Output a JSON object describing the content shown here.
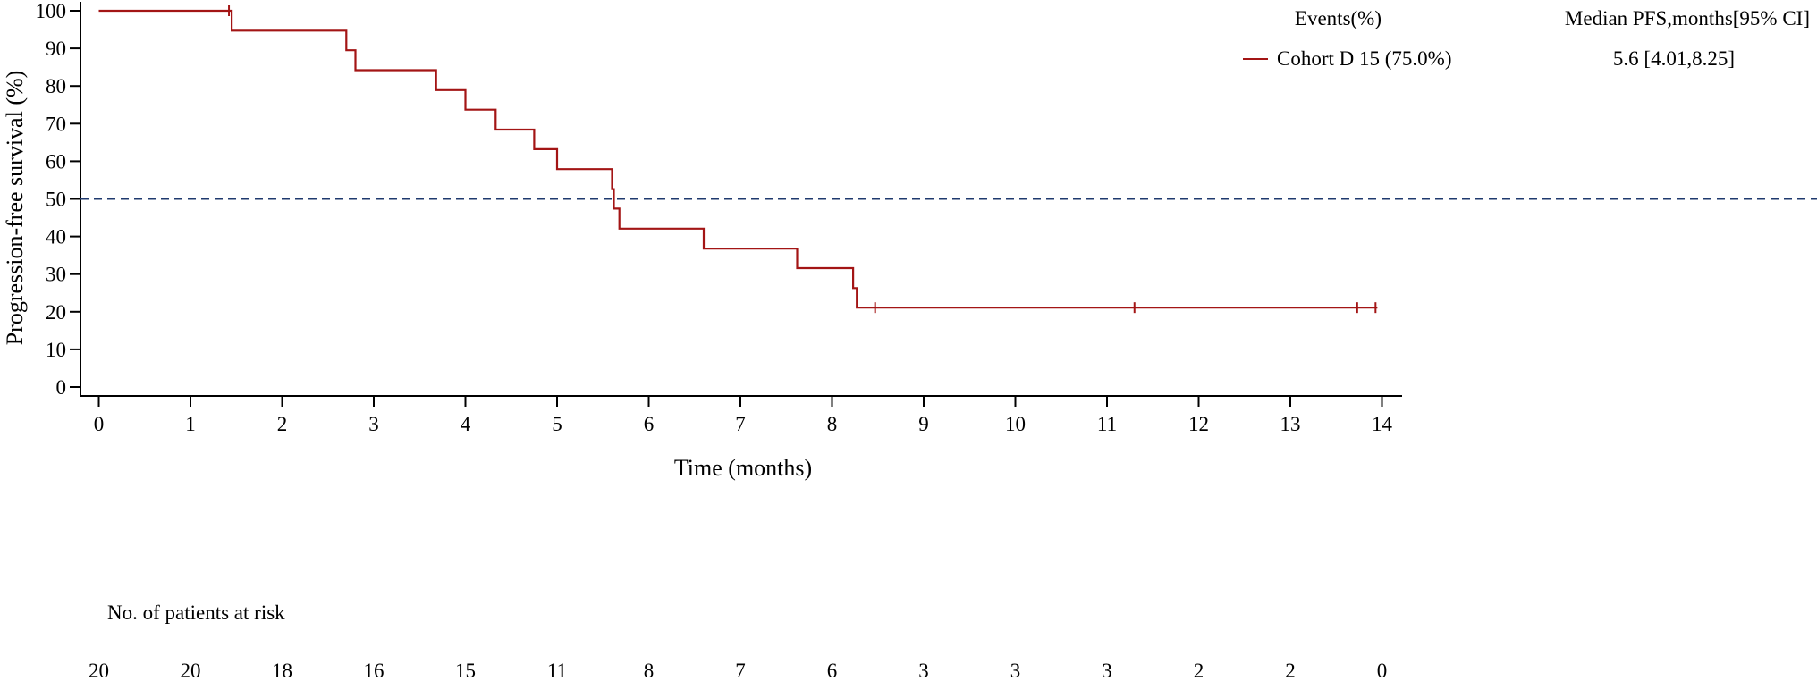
{
  "chart_data": {
    "type": "line",
    "step": true,
    "xlabel": "Time (months)",
    "ylabel": "Progression-free survival (%)",
    "xlim": [
      0,
      14
    ],
    "ylim": [
      0,
      100
    ],
    "x_ticks": [
      0,
      1,
      2,
      3,
      4,
      5,
      6,
      7,
      8,
      9,
      10,
      11,
      12,
      13,
      14
    ],
    "y_ticks": [
      0,
      10,
      20,
      30,
      40,
      50,
      60,
      70,
      80,
      90,
      100
    ],
    "grid": false,
    "reference_line": {
      "y": 50,
      "style": "dashed",
      "color": "#1f3a6e"
    },
    "legend": {
      "placement": "top-right",
      "header_events": "Events(%)",
      "header_median": "Median PFS,months[95% CI]",
      "entry_label": "Cohort D 15 (75.0%)",
      "entry_median": "5.6 [4.01,8.25]"
    },
    "series": [
      {
        "name": "Cohort D",
        "color": "#a31515",
        "x": [
          0,
          1.45,
          1.45,
          2.7,
          2.7,
          2.8,
          2.8,
          3.68,
          3.68,
          4.0,
          4.0,
          4.33,
          4.33,
          4.75,
          4.75,
          5.0,
          5.0,
          5.6,
          5.6,
          5.62,
          5.62,
          5.68,
          5.68,
          6.6,
          6.6,
          7.62,
          7.62,
          8.23,
          8.23,
          8.27,
          8.27,
          13.95
        ],
        "y": [
          100,
          100,
          94.7,
          94.7,
          89.5,
          89.5,
          84.2,
          84.2,
          78.9,
          78.9,
          73.7,
          73.7,
          68.4,
          68.4,
          63.2,
          63.2,
          57.9,
          57.9,
          52.6,
          52.6,
          47.4,
          47.4,
          42.1,
          42.1,
          36.8,
          36.8,
          31.6,
          31.6,
          26.3,
          26.3,
          21.1,
          21.1
        ],
        "censored": [
          {
            "x": 1.42,
            "y": 100
          },
          {
            "x": 8.47,
            "y": 21.1
          },
          {
            "x": 11.3,
            "y": 21.1
          },
          {
            "x": 13.73,
            "y": 21.1
          },
          {
            "x": 13.93,
            "y": 21.1
          }
        ]
      }
    ],
    "risk_table": {
      "title": "No. of patients at risk",
      "x": [
        0,
        1,
        2,
        3,
        4,
        5,
        6,
        7,
        8,
        9,
        10,
        11,
        12,
        13,
        14
      ],
      "counts": [
        "20",
        "20",
        "18",
        "16",
        "15",
        "11",
        "8",
        "7",
        "6",
        "3",
        "3",
        "3",
        "2",
        "2",
        "0"
      ]
    }
  }
}
